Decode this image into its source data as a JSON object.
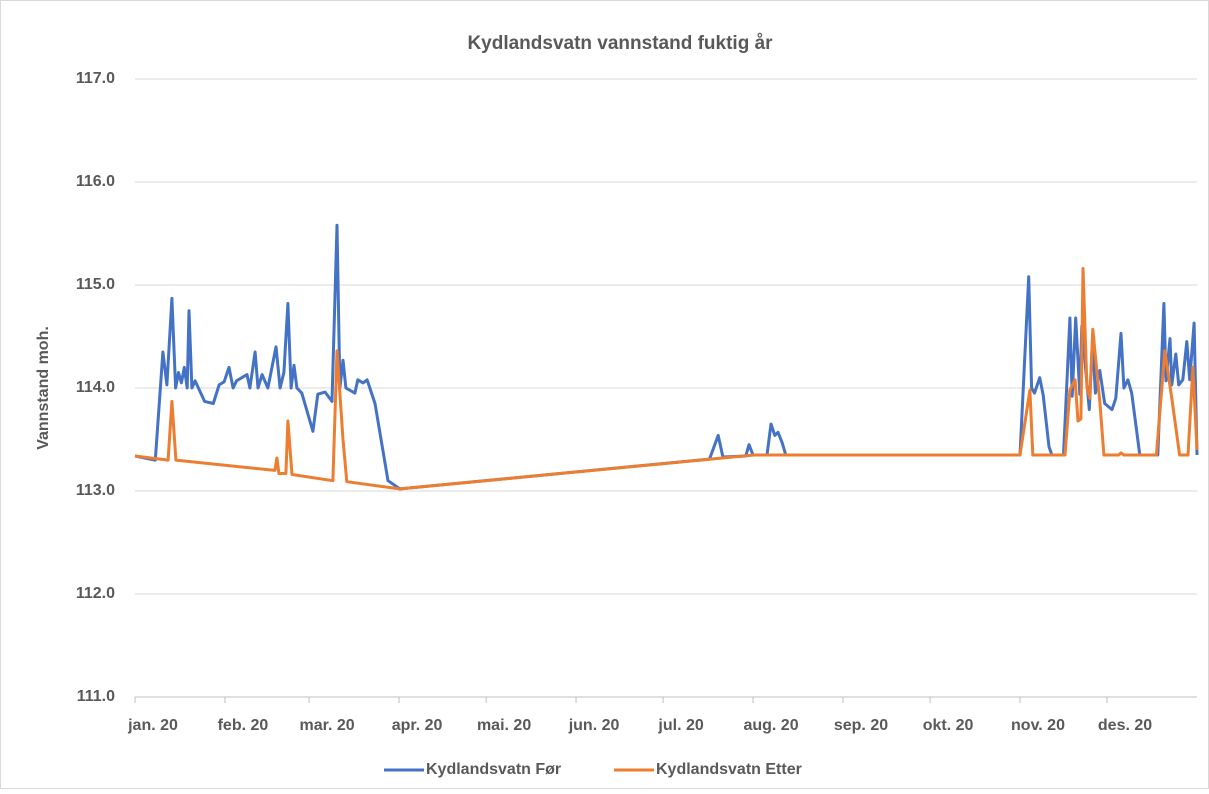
{
  "chart_data": {
    "type": "line",
    "title": "Kydlandsvatn vannstand fuktig år",
    "y_label": "Vannstand moh.",
    "xlim": [
      0,
      366
    ],
    "xticks": [
      {
        "value": 0,
        "label": "jan. 20"
      },
      {
        "value": 31,
        "label": "feb. 20"
      },
      {
        "value": 60,
        "label": "mar. 20"
      },
      {
        "value": 91,
        "label": "apr. 20"
      },
      {
        "value": 121,
        "label": "mai. 20"
      },
      {
        "value": 152,
        "label": "jun. 20"
      },
      {
        "value": 182,
        "label": "jul. 20"
      },
      {
        "value": 213,
        "label": "aug. 20"
      },
      {
        "value": 244,
        "label": "sep. 20"
      },
      {
        "value": 274,
        "label": "okt. 20"
      },
      {
        "value": 305,
        "label": "nov. 20"
      },
      {
        "value": 335,
        "label": "des. 20"
      }
    ],
    "ylim": [
      111,
      117
    ],
    "yticks": [
      {
        "value": 111,
        "label": "111.0"
      },
      {
        "value": 112,
        "label": "112.0"
      },
      {
        "value": 113,
        "label": "113.0"
      },
      {
        "value": 114,
        "label": "114.0"
      },
      {
        "value": 115,
        "label": "115.0"
      },
      {
        "value": 116,
        "label": "116.0"
      },
      {
        "value": 117,
        "label": "117.0"
      }
    ],
    "grid": true,
    "legend": "bottom",
    "series": [
      {
        "name": "Kydlandsvatn Før",
        "color": "#4472c4",
        "x": [
          0,
          7,
          7.6,
          9.6,
          11,
          12.7,
          14,
          15,
          16,
          17,
          18,
          18.6,
          19.6,
          20.7,
          24,
          27,
          29,
          30.7,
          32.4,
          33.8,
          35,
          38.6,
          39.6,
          41.4,
          42.4,
          43.8,
          45.8,
          48.6,
          50,
          51.3,
          52.7,
          53.8,
          54.8,
          55.8,
          57.5,
          61.3,
          63,
          65.5,
          67.9,
          69.6,
          70.6,
          71.7,
          72.7,
          75.8,
          76.8,
          78.6,
          80,
          82.7,
          87.2,
          91.3,
          198,
          201,
          202.6,
          210.5,
          211.6,
          213,
          217.8,
          219.2,
          220.5,
          221.6,
          223,
          224.3,
          305,
          308,
          309,
          310,
          311.8,
          313,
          315,
          316,
          320,
          322.2,
          323,
          324.2,
          325.6,
          326.3,
          328.9,
          330,
          331,
          332.5,
          334.2,
          336.7,
          338,
          339.8,
          340.8,
          342.2,
          343.5,
          346.3,
          352.5,
          354.6,
          355.3,
          356.7,
          357.3,
          358.7,
          359.7,
          361.1,
          362.5,
          363.5,
          365,
          366
        ],
        "values": [
          113.34,
          113.3,
          113.55,
          114.35,
          114.03,
          114.87,
          114.0,
          114.15,
          114.05,
          114.2,
          114.0,
          114.75,
          114.0,
          114.07,
          113.87,
          113.85,
          114.03,
          114.06,
          114.2,
          114.0,
          114.07,
          114.13,
          114.0,
          114.35,
          114.0,
          114.13,
          114.0,
          114.4,
          114.0,
          114.15,
          114.82,
          114.0,
          114.22,
          114.0,
          113.95,
          113.58,
          113.94,
          113.96,
          113.87,
          115.58,
          114.0,
          114.27,
          114.0,
          113.95,
          114.08,
          114.05,
          114.08,
          113.85,
          113.1,
          113.02,
          113.31,
          113.54,
          113.33,
          113.34,
          113.45,
          113.35,
          113.35,
          113.65,
          113.54,
          113.57,
          113.47,
          113.35,
          113.35,
          115.08,
          114.0,
          113.95,
          114.1,
          113.93,
          113.43,
          113.35,
          113.35,
          114.68,
          113.92,
          114.68,
          113.94,
          114.6,
          113.79,
          114.47,
          113.95,
          114.17,
          113.85,
          113.79,
          113.9,
          114.53,
          114.0,
          114.08,
          113.95,
          113.35,
          113.35,
          114.82,
          114.07,
          114.48,
          114.03,
          114.33,
          114.03,
          114.08,
          114.45,
          114.08,
          114.63,
          113.35
        ]
      },
      {
        "name": "Kydlandsvatn Etter",
        "color": "#ed7d31",
        "x": [
          0,
          11.4,
          12.7,
          14.1,
          48.2,
          48.9,
          49.6,
          52,
          52.7,
          54.1,
          68.2,
          69.6,
          71.7,
          73,
          91.3,
          213.3,
          305,
          308.4,
          309.4,
          320.5,
          322.2,
          324,
          325,
          326,
          326.7,
          328.1,
          329.1,
          330.1,
          332.5,
          333.9,
          339,
          339.8,
          340.8,
          352,
          354.9,
          357.3,
          360,
          362.9,
          364.6,
          366
        ],
        "values": [
          113.34,
          113.3,
          113.87,
          113.3,
          113.2,
          113.32,
          113.17,
          113.17,
          113.68,
          113.16,
          113.1,
          114.36,
          113.5,
          113.09,
          113.02,
          113.35,
          113.35,
          113.98,
          113.35,
          113.35,
          113.98,
          114.08,
          113.68,
          113.7,
          115.16,
          114.0,
          113.9,
          114.57,
          113.87,
          113.35,
          113.35,
          113.37,
          113.35,
          113.35,
          114.36,
          113.9,
          113.35,
          113.35,
          114.2,
          113.4
        ]
      }
    ]
  }
}
